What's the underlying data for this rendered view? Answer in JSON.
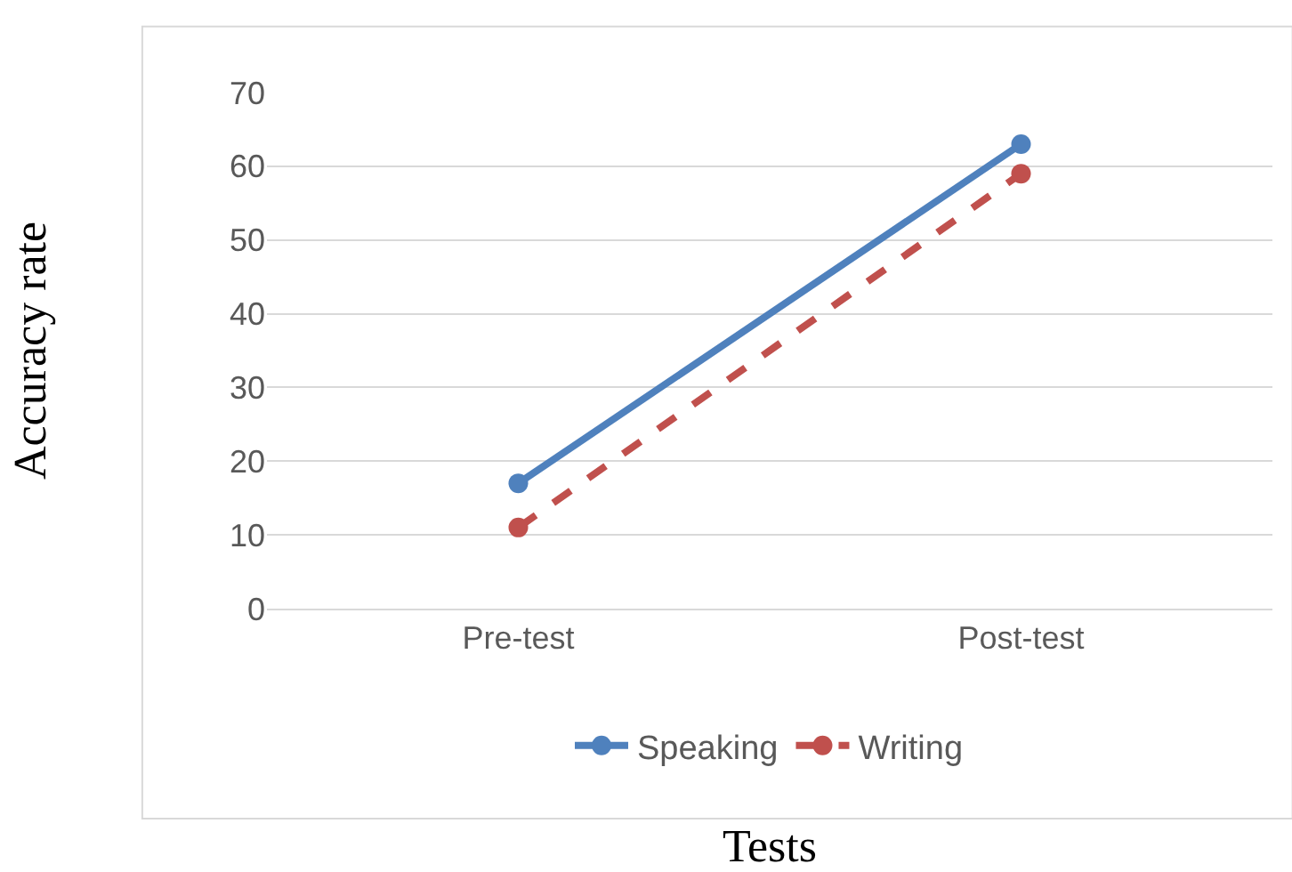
{
  "chart_data": {
    "type": "line",
    "xlabel": "Tests",
    "ylabel": "Accuracy rate",
    "categories": [
      "Pre-test",
      "Post-test"
    ],
    "series": [
      {
        "name": "Speaking",
        "color": "#4f81bd",
        "values": [
          17,
          63
        ],
        "line_style": "solid"
      },
      {
        "name": "Writing",
        "color": "#c0504d",
        "values": [
          11,
          59
        ],
        "line_style": "dashed"
      }
    ],
    "ylim": [
      0,
      70
    ],
    "yticks": [
      0,
      10,
      20,
      30,
      40,
      50,
      60,
      70
    ],
    "grid": "y",
    "legend": "bottom",
    "marker": "circle"
  }
}
